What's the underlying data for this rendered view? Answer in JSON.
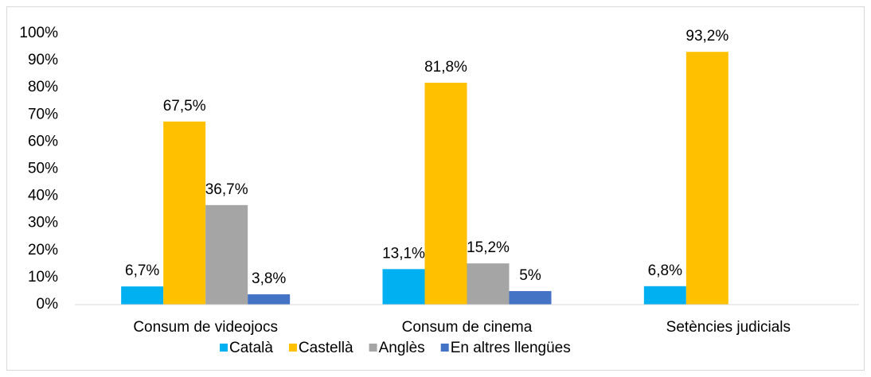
{
  "chart_data": {
    "type": "bar",
    "categories": [
      "Consum de videojocs",
      "Consum de cinema",
      "Setències judicials"
    ],
    "series": [
      {
        "name": "Català",
        "color": "#00b0f0",
        "values": [
          6.7,
          13.1,
          6.8
        ],
        "value_labels": [
          "6,7%",
          "13,1%",
          "6,8%"
        ]
      },
      {
        "name": "Castellà",
        "color": "#ffc000",
        "values": [
          67.5,
          81.8,
          93.2
        ],
        "value_labels": [
          "67,5%",
          "81,8%",
          "93,2%"
        ]
      },
      {
        "name": "Anglès",
        "color": "#a5a5a5",
        "values": [
          36.7,
          15.2,
          null
        ],
        "value_labels": [
          "36,7%",
          "15,2%",
          null
        ]
      },
      {
        "name": "En altres llengües",
        "color": "#4472c4",
        "values": [
          3.8,
          5,
          null
        ],
        "value_labels": [
          "3,8%",
          "5%",
          null
        ]
      }
    ],
    "ylim": [
      0,
      100
    ],
    "yticks": [
      {
        "value": 0,
        "label": "0%"
      },
      {
        "value": 10,
        "label": "10%"
      },
      {
        "value": 20,
        "label": "20%"
      },
      {
        "value": 30,
        "label": "30%"
      },
      {
        "value": 40,
        "label": "40%"
      },
      {
        "value": 50,
        "label": "50%"
      },
      {
        "value": 60,
        "label": "60%"
      },
      {
        "value": 70,
        "label": "70%"
      },
      {
        "value": 80,
        "label": "80%"
      },
      {
        "value": 90,
        "label": "90%"
      },
      {
        "value": 100,
        "label": "100%"
      }
    ],
    "legend": "bottom"
  }
}
